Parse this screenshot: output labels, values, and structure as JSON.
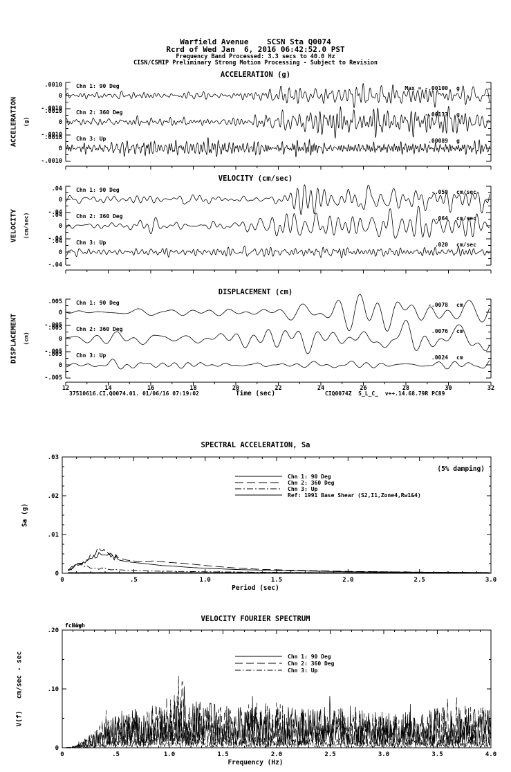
{
  "header": {
    "line1": "Warfield Avenue    SCSN Sta Q0074",
    "line2": "Rcrd of Wed Jan  6, 2016 06:42:52.0 PST",
    "line3": "Frequency Band Processed: 3.3 secs to 40.0 Hz",
    "line4": "CISN/CSMIP Preliminary Strong Motion Processing - Subject to Revision"
  },
  "time_axis": {
    "label": "Time (sec)",
    "min": 12,
    "max": 32,
    "tick_labels": [
      "12",
      "14",
      "16",
      "18",
      "20",
      "22",
      "24",
      "26",
      "28",
      "30",
      "32"
    ]
  },
  "footer": {
    "left": "37510616.CI.Q0074.01. 01/06/16 07:19:02",
    "right": "CIQ0074Z  S_L_C_  v++.14.68.79R PC89"
  },
  "chart_data": [
    {
      "id": "acceleration",
      "type": "line",
      "title": "ACCELERATION (g)",
      "ylabel": "ACCELERATION",
      "ylabel_unit": "(g)",
      "yticks": [
        ".0010",
        "0",
        "-.0010"
      ],
      "yscale": 0.001,
      "x_range": [
        12,
        32
      ],
      "channels": [
        {
          "label": "Chn 1: 90 Deg",
          "max_label": "Max = -.00100",
          "unit": "g",
          "max": -0.001,
          "seed": 11,
          "freq": [
            1.2,
            6.5
          ],
          "env": [
            [
              12,
              0.3
            ],
            [
              20.5,
              0.32
            ],
            [
              21.3,
              0.5
            ],
            [
              22,
              1.0
            ],
            [
              23.5,
              0.85
            ],
            [
              25,
              0.75
            ],
            [
              26.5,
              0.95
            ],
            [
              28,
              0.8
            ],
            [
              29.5,
              0.95
            ],
            [
              31,
              0.85
            ],
            [
              32,
              0.9
            ]
          ]
        },
        {
          "label": "Chn 2: 360 Deg",
          "max_label": "-.00133",
          "unit": "g",
          "max": -0.00133,
          "seed": 12,
          "freq": [
            1.2,
            6.5
          ],
          "env": [
            [
              12,
              0.27
            ],
            [
              20.8,
              0.3
            ],
            [
              21.8,
              0.6
            ],
            [
              22.6,
              1.0
            ],
            [
              24,
              0.9
            ],
            [
              25.5,
              0.7
            ],
            [
              26.8,
              0.95
            ],
            [
              28,
              0.7
            ],
            [
              29.5,
              0.85
            ],
            [
              31,
              0.75
            ],
            [
              32,
              0.85
            ]
          ]
        },
        {
          "label": "Chn 3: Up",
          "max_label": ".00089",
          "unit": "g",
          "max": 0.00089,
          "seed": 13,
          "freq": [
            3,
            11
          ],
          "env": [
            [
              12,
              0.62
            ],
            [
              18,
              0.68
            ],
            [
              22,
              0.8
            ],
            [
              24,
              0.72
            ],
            [
              27,
              0.78
            ],
            [
              30,
              0.7
            ],
            [
              32,
              0.78
            ]
          ]
        }
      ]
    },
    {
      "id": "velocity",
      "type": "line",
      "title": "VELOCITY (cm/sec)",
      "ylabel": "VELOCITY",
      "ylabel_unit": "(cm/sec)",
      "yticks": [
        ".04",
        "0",
        "-.04"
      ],
      "yscale": 0.04,
      "x_range": [
        12,
        32
      ],
      "channels": [
        {
          "label": "Chn 1: 90 Deg",
          "max_label": "-.050",
          "unit": "cm/sec",
          "max": -0.05,
          "seed": 21,
          "freq": [
            0.7,
            3.5
          ],
          "env": [
            [
              12,
              0.3
            ],
            [
              20.5,
              0.33
            ],
            [
              22,
              0.9
            ],
            [
              23.5,
              1.0
            ],
            [
              25,
              0.8
            ],
            [
              27,
              0.95
            ],
            [
              29,
              0.85
            ],
            [
              31,
              0.95
            ],
            [
              32,
              0.9
            ]
          ]
        },
        {
          "label": "Chn 2: 360 Deg",
          "max_label": ".064",
          "unit": "cm/sec",
          "max": 0.064,
          "seed": 22,
          "freq": [
            0.7,
            3.5
          ],
          "env": [
            [
              12,
              0.28
            ],
            [
              20.5,
              0.3
            ],
            [
              21.8,
              0.7
            ],
            [
              22.8,
              1.0
            ],
            [
              24.5,
              0.9
            ],
            [
              26,
              0.75
            ],
            [
              27.5,
              0.95
            ],
            [
              29,
              0.8
            ],
            [
              31,
              0.85
            ],
            [
              32,
              0.8
            ]
          ]
        },
        {
          "label": "Chn 3: Up",
          "max_label": ".020",
          "unit": "cm/sec",
          "max": 0.02,
          "seed": 23,
          "freq": [
            1.5,
            6.5
          ],
          "env": [
            [
              12,
              0.7
            ],
            [
              18,
              0.75
            ],
            [
              22,
              0.85
            ],
            [
              26,
              0.75
            ],
            [
              30,
              0.8
            ],
            [
              32,
              0.75
            ]
          ]
        }
      ]
    },
    {
      "id": "displacement",
      "type": "line",
      "title": "DISPLACEMENT (cm)",
      "ylabel": "DISPLACEMENT",
      "ylabel_unit": "(cm)",
      "yticks": [
        ".005",
        "0",
        "-.005"
      ],
      "yscale": 0.005,
      "x_range": [
        12,
        32
      ],
      "channels": [
        {
          "label": "Chn 1: 90 Deg",
          "max_label": "-.0078",
          "unit": "cm",
          "max": -0.0078,
          "seed": 31,
          "freq": [
            0.3,
            1.3
          ],
          "env": [
            [
              12,
              0.12
            ],
            [
              20,
              0.15
            ],
            [
              22,
              0.3
            ],
            [
              24,
              0.5
            ],
            [
              26,
              0.65
            ],
            [
              28,
              0.9
            ],
            [
              30,
              0.85
            ],
            [
              32,
              1.0
            ]
          ]
        },
        {
          "label": "Chn 2: 360 Deg",
          "max_label": ".0076",
          "unit": "cm",
          "max": 0.0076,
          "seed": 32,
          "freq": [
            0.35,
            1.5
          ],
          "env": [
            [
              12,
              0.2
            ],
            [
              19,
              0.25
            ],
            [
              21,
              0.45
            ],
            [
              22.5,
              0.9
            ],
            [
              24,
              0.7
            ],
            [
              25.5,
              0.85
            ],
            [
              27,
              1.0
            ],
            [
              28.5,
              0.7
            ],
            [
              30,
              0.85
            ],
            [
              32,
              0.9
            ]
          ]
        },
        {
          "label": "Chn 3: Up",
          "max_label": ".0024",
          "unit": "cm",
          "max": 0.0024,
          "seed": 33,
          "freq": [
            0.4,
            1.8
          ],
          "env": [
            [
              12,
              0.5
            ],
            [
              16,
              0.6
            ],
            [
              20,
              0.55
            ],
            [
              24,
              0.6
            ],
            [
              28,
              0.65
            ],
            [
              32,
              0.6
            ]
          ]
        }
      ]
    },
    {
      "id": "spectral_acceleration",
      "type": "line",
      "title": "SPECTRAL ACCELERATION, Sa",
      "xlabel": "Period (sec)",
      "ylabel": "Sa (g)",
      "annotation": "(5% damping)",
      "xlim": [
        0,
        3
      ],
      "ylim": [
        0,
        0.03
      ],
      "xtick_labels": [
        "0",
        ".5",
        "1.0",
        "1.5",
        "2.0",
        "2.5",
        "3.0"
      ],
      "xtick_values": [
        0,
        0.5,
        1,
        1.5,
        2,
        2.5,
        3
      ],
      "ytick_labels": [
        "0",
        ".01",
        ".02",
        ".03"
      ],
      "ytick_values": [
        0,
        0.01,
        0.02,
        0.03
      ],
      "series": [
        {
          "name": "Chn 1: 90 Deg",
          "dash": "",
          "points": [
            [
              0.04,
              0.0008
            ],
            [
              0.07,
              0.0012
            ],
            [
              0.09,
              0.0024
            ],
            [
              0.11,
              0.0018
            ],
            [
              0.13,
              0.003
            ],
            [
              0.15,
              0.0026
            ],
            [
              0.17,
              0.0036
            ],
            [
              0.2,
              0.0044
            ],
            [
              0.23,
              0.004
            ],
            [
              0.26,
              0.0047
            ],
            [
              0.3,
              0.0044
            ],
            [
              0.33,
              0.005
            ],
            [
              0.36,
              0.0042
            ],
            [
              0.4,
              0.0034
            ],
            [
              0.45,
              0.003
            ],
            [
              0.5,
              0.0028
            ],
            [
              0.6,
              0.0024
            ],
            [
              0.7,
              0.002
            ],
            [
              0.8,
              0.0018
            ],
            [
              0.9,
              0.0015
            ],
            [
              1.0,
              0.0013
            ],
            [
              1.2,
              0.001
            ],
            [
              1.4,
              0.0008
            ],
            [
              1.7,
              0.0006
            ],
            [
              2.0,
              0.0004
            ],
            [
              2.5,
              0.0003
            ],
            [
              3.0,
              0.0002
            ]
          ]
        },
        {
          "name": "Chn 2: 360 Deg",
          "dash": "12,5",
          "points": [
            [
              0.04,
              0.0006
            ],
            [
              0.08,
              0.0014
            ],
            [
              0.1,
              0.002
            ],
            [
              0.13,
              0.0024
            ],
            [
              0.16,
              0.003
            ],
            [
              0.2,
              0.0042
            ],
            [
              0.24,
              0.0056
            ],
            [
              0.27,
              0.0064
            ],
            [
              0.3,
              0.006
            ],
            [
              0.34,
              0.0052
            ],
            [
              0.38,
              0.0042
            ],
            [
              0.45,
              0.0034
            ],
            [
              0.55,
              0.003
            ],
            [
              0.65,
              0.0032
            ],
            [
              0.75,
              0.0028
            ],
            [
              0.9,
              0.0024
            ],
            [
              1.0,
              0.002
            ],
            [
              1.2,
              0.0014
            ],
            [
              1.4,
              0.001
            ],
            [
              1.7,
              0.0007
            ],
            [
              2.0,
              0.0005
            ],
            [
              2.5,
              0.0003
            ],
            [
              3.0,
              0.0002
            ]
          ]
        },
        {
          "name": "Chn 3: Up",
          "dash": "9,3,2,3",
          "points": [
            [
              0.04,
              0.0008
            ],
            [
              0.07,
              0.0016
            ],
            [
              0.09,
              0.0022
            ],
            [
              0.11,
              0.0028
            ],
            [
              0.13,
              0.0024
            ],
            [
              0.16,
              0.0018
            ],
            [
              0.2,
              0.0014
            ],
            [
              0.25,
              0.0012
            ],
            [
              0.3,
              0.0013
            ],
            [
              0.35,
              0.001
            ],
            [
              0.45,
              0.0008
            ],
            [
              0.6,
              0.0006
            ],
            [
              0.8,
              0.0005
            ],
            [
              1.0,
              0.0004
            ],
            [
              1.3,
              0.0003
            ],
            [
              1.8,
              0.0002
            ],
            [
              2.4,
              0.0002
            ],
            [
              3.0,
              0.0001
            ]
          ]
        },
        {
          "name": "Ref: 1991 Base Shear (S2,I1,Zone4,Rw1&4)",
          "dash": "",
          "points": [
            [
              0.04,
              0.0002
            ],
            [
              3.0,
              0.0002
            ]
          ]
        }
      ]
    },
    {
      "id": "velocity_fourier_spectrum",
      "type": "line",
      "title": "VELOCITY FOURIER SPECTRUM",
      "xlabel": "Frequency (Hz)",
      "ylabel": "V(f)   cm/sec - sec",
      "corner_freq_labels": [
        "fcLow",
        "fcHigh"
      ],
      "xlim": [
        0,
        4
      ],
      "ylim": [
        0,
        0.2
      ],
      "xtick_labels": [
        "0",
        ".5",
        "1.0",
        "1.5",
        "2.0",
        "2.5",
        "3.0",
        "3.5",
        "4.0"
      ],
      "xtick_values": [
        0,
        0.5,
        1,
        1.5,
        2,
        2.5,
        3,
        3.5,
        4
      ],
      "ytick_labels": [
        "0",
        ".10",
        ".20"
      ],
      "ytick_values": [
        0,
        0.1,
        0.2
      ],
      "series": [
        {
          "name": "Chn 1: 90 Deg",
          "dash": "",
          "seed": 61,
          "peak_value": 0.1,
          "peak_freq": 1.1,
          "env": [
            [
              0,
              0
            ],
            [
              0.1,
              0.001
            ],
            [
              0.2,
              0.008
            ],
            [
              0.35,
              0.025
            ],
            [
              0.5,
              0.04
            ],
            [
              0.7,
              0.045
            ],
            [
              0.9,
              0.05
            ],
            [
              1.1,
              0.06
            ],
            [
              1.3,
              0.055
            ],
            [
              1.6,
              0.05
            ],
            [
              2,
              0.048
            ],
            [
              2.4,
              0.05
            ],
            [
              2.8,
              0.045
            ],
            [
              3.2,
              0.042
            ],
            [
              3.6,
              0.05
            ],
            [
              4,
              0.045
            ]
          ]
        },
        {
          "name": "Chn 2: 360 Deg",
          "dash": "11,5",
          "seed": 62,
          "peak_value": 0.112,
          "peak_freq": 1.12,
          "spike": [
            1.12,
            0.112
          ],
          "env": [
            [
              0,
              0
            ],
            [
              0.1,
              0.001
            ],
            [
              0.2,
              0.01
            ],
            [
              0.35,
              0.03
            ],
            [
              0.5,
              0.045
            ],
            [
              0.8,
              0.05
            ],
            [
              1.05,
              0.065
            ],
            [
              1.2,
              0.06
            ],
            [
              1.5,
              0.05
            ],
            [
              1.9,
              0.055
            ],
            [
              2.3,
              0.045
            ],
            [
              2.7,
              0.05
            ],
            [
              3.1,
              0.04
            ],
            [
              3.5,
              0.05
            ],
            [
              4,
              0.048
            ]
          ]
        },
        {
          "name": "Chn 3: Up",
          "dash": "8,3,1.5,3",
          "seed": 63,
          "peak_value": 0.035,
          "peak_freq": 1.0,
          "env": [
            [
              0,
              0
            ],
            [
              0.15,
              0.002
            ],
            [
              0.35,
              0.008
            ],
            [
              0.6,
              0.014
            ],
            [
              1,
              0.02
            ],
            [
              1.5,
              0.016
            ],
            [
              2,
              0.014
            ],
            [
              2.5,
              0.012
            ],
            [
              3,
              0.012
            ],
            [
              3.5,
              0.01
            ],
            [
              4,
              0.01
            ]
          ]
        }
      ]
    }
  ]
}
